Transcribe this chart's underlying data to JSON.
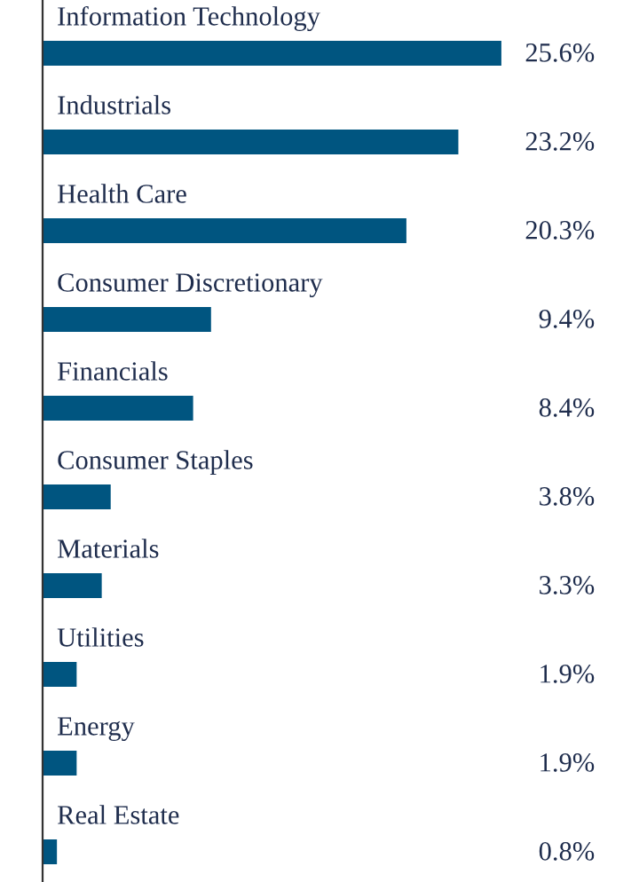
{
  "chart_data": {
    "type": "bar",
    "orientation": "horizontal",
    "categories": [
      "Information Technology",
      "Industrials",
      "Health Care",
      "Consumer Discretionary",
      "Financials",
      "Consumer Staples",
      "Materials",
      "Utilities",
      "Energy",
      "Real Estate"
    ],
    "values": [
      25.6,
      23.2,
      20.3,
      9.4,
      8.4,
      3.8,
      3.3,
      1.9,
      1.9,
      0.8
    ],
    "value_labels": [
      "25.6%",
      "23.2%",
      "20.3%",
      "9.4%",
      "8.4%",
      "3.8%",
      "3.3%",
      "1.9%",
      "1.9%",
      "0.8%"
    ],
    "color": "#005580"
  }
}
